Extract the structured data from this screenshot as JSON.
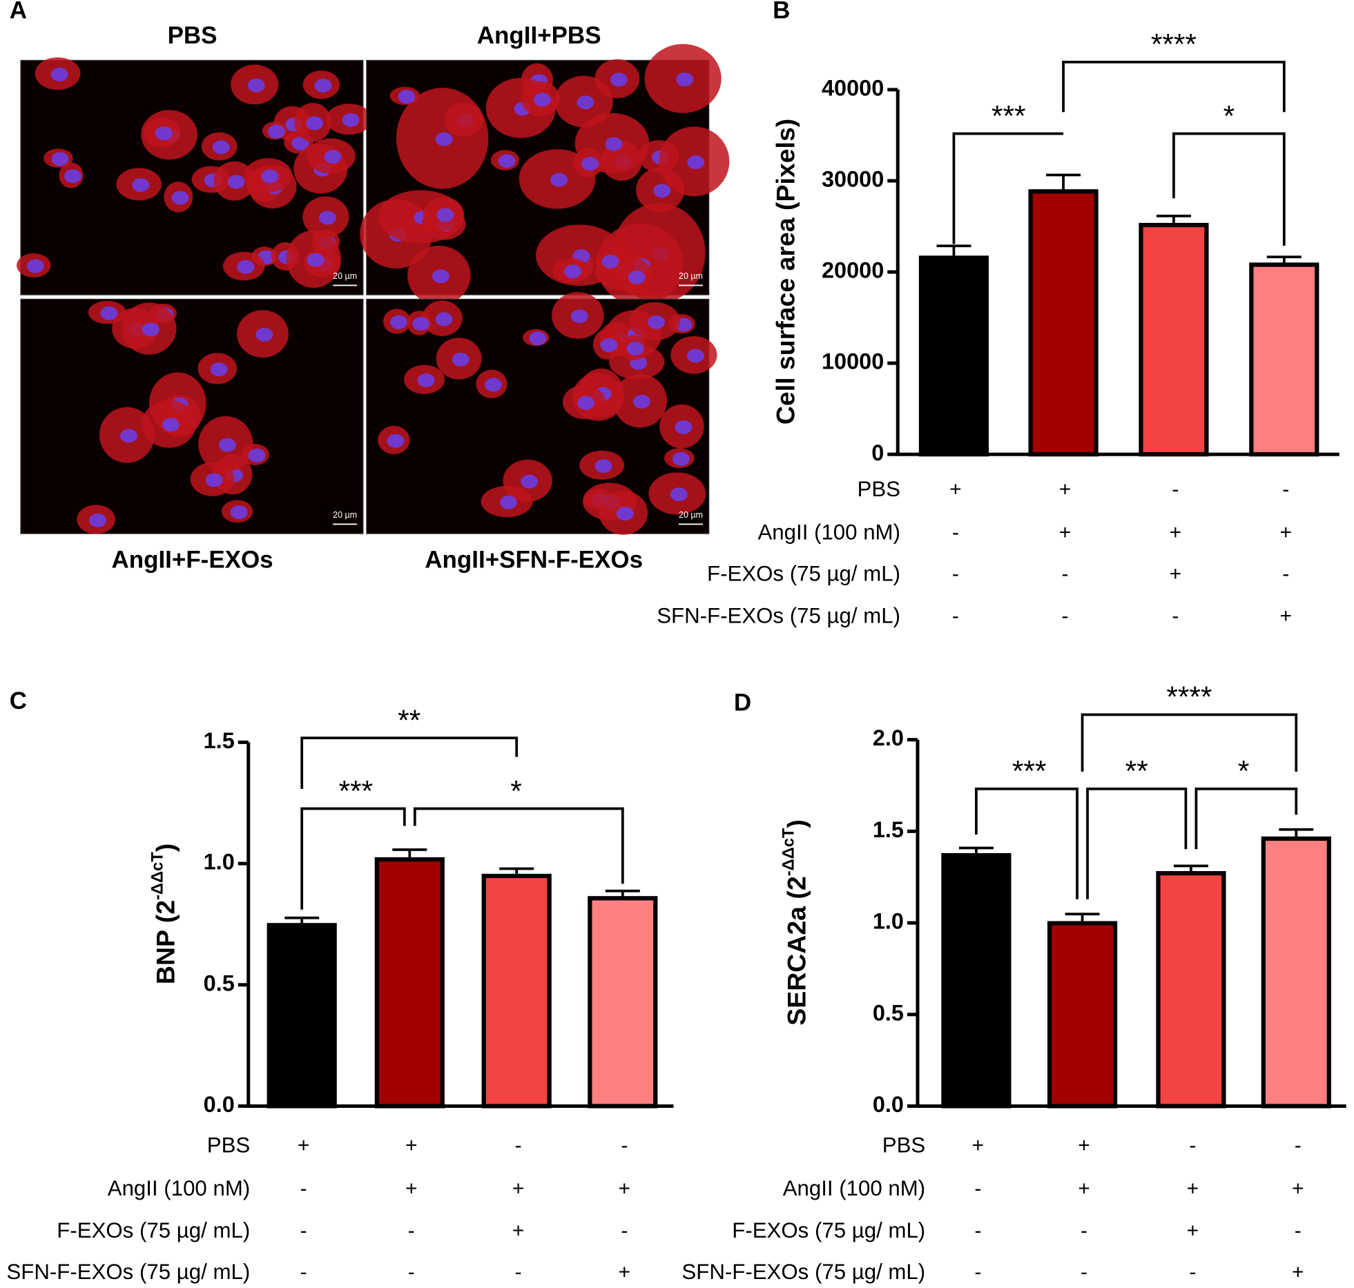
{
  "panels": {
    "letters": [
      "A",
      "B",
      "C",
      "D"
    ]
  },
  "images": {
    "titles": [
      "PBS",
      "AngII+PBS",
      "AngII+F-EXOs",
      "AngII+SFN-F-EXOs"
    ],
    "scale_bar": "20 µm"
  },
  "chart_data": [
    {
      "type": "bar",
      "y_label": [
        "Cell surface area (Pixels)"
      ],
      "values": [
        21560,
        28840,
        25150,
        20800
      ],
      "errors": [
        1300,
        1800,
        1000,
        850
      ],
      "colors": [
        "#000000",
        "#a30000",
        "#f44343",
        "#ff8080"
      ],
      "ylim": [
        0,
        40000
      ],
      "yticks": [
        0,
        10000,
        20000,
        30000,
        40000
      ],
      "annotations": [
        "***",
        "*",
        "****"
      ],
      "conditions": [
        {
          "label": "PBS",
          "values": [
            "+",
            "+",
            "-",
            "-"
          ]
        },
        {
          "label": "AngII (100 nM)",
          "values": [
            "-",
            "+",
            "+",
            "+"
          ]
        },
        {
          "label": "F-EXOs (75 µg/ mL)",
          "values": [
            "-",
            "-",
            "+",
            "-"
          ]
        },
        {
          "label": "SFN-F-EXOs (75 µg/ mL)",
          "values": [
            "-",
            "-",
            "-",
            "+"
          ]
        }
      ]
    },
    {
      "type": "bar",
      "y_label": [
        "BNP (2",
        "-ΔΔcT",
        ")"
      ],
      "values": [
        0.746,
        1.017,
        0.949,
        0.857
      ],
      "errors": [
        0.03,
        0.04,
        0.03,
        0.03
      ],
      "colors": [
        "#000000",
        "#a30000",
        "#f44343",
        "#ff8080"
      ],
      "ylim": [
        0,
        1.5
      ],
      "yticks": [
        {
          "value": 0,
          "label": "0.0"
        },
        0.5,
        {
          "value": 1,
          "label": "1.0"
        },
        1.5
      ],
      "annotations": [
        "***",
        "*",
        "**"
      ],
      "conditions": [
        {
          "label": "PBS",
          "values": [
            "+",
            "+",
            "-",
            "-"
          ]
        },
        {
          "label": "AngII (100 nM)",
          "values": [
            "-",
            "+",
            "+",
            "+"
          ]
        },
        {
          "label": "F-EXOs (75 µg/ mL)",
          "values": [
            "-",
            "-",
            "+",
            "-"
          ]
        },
        {
          "label": "SFN-F-EXOs (75 µg/ mL)",
          "values": [
            "-",
            "-",
            "-",
            "+"
          ]
        }
      ]
    },
    {
      "type": "bar",
      "y_label": [
        "SERCA2a (2",
        "-ΔΔcT",
        ")"
      ],
      "values": [
        1.369,
        0.998,
        1.271,
        1.46
      ],
      "errors": [
        0.04,
        0.05,
        0.04,
        0.05
      ],
      "colors": [
        "#000000",
        "#a30000",
        "#f44343",
        "#ff8080"
      ],
      "ylim": [
        0,
        2
      ],
      "yticks": [
        {
          "value": 0,
          "label": "0.0"
        },
        0.5,
        {
          "value": 1,
          "label": "1.0"
        },
        1.5,
        {
          "value": 2,
          "label": "2.0"
        }
      ],
      "annotations": [
        "***",
        "**",
        "*",
        "****"
      ],
      "conditions": [
        {
          "label": "PBS",
          "values": [
            "+",
            "+",
            "-",
            "-"
          ]
        },
        {
          "label": "AngII (100 nM)",
          "values": [
            "-",
            "+",
            "+",
            "+"
          ]
        },
        {
          "label": "F-EXOs (75 µg/ mL)",
          "values": [
            "-",
            "-",
            "+",
            "-"
          ]
        },
        {
          "label": "SFN-F-EXOs (75 µg/ mL)",
          "values": [
            "-",
            "-",
            "-",
            "+"
          ]
        }
      ]
    }
  ]
}
